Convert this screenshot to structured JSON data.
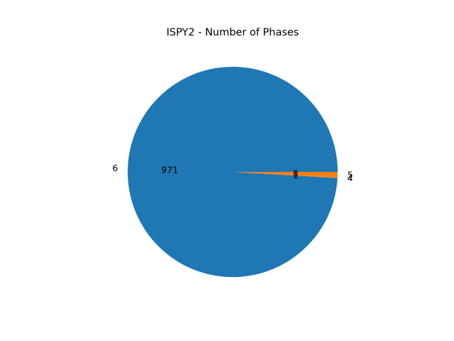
{
  "chart_data": {
    "type": "pie",
    "title": "ISPY2 - Number of Phases",
    "slices": [
      {
        "label": "6",
        "value": 971,
        "value_label": "971",
        "color": "#1f77b4"
      },
      {
        "label": "4",
        "value": 1,
        "value_label": "1",
        "color": "#ff7f0e"
      },
      {
        "label": "5",
        "value": 8,
        "value_label": "8",
        "color": "#ff7f0e"
      }
    ],
    "legend": "none"
  }
}
